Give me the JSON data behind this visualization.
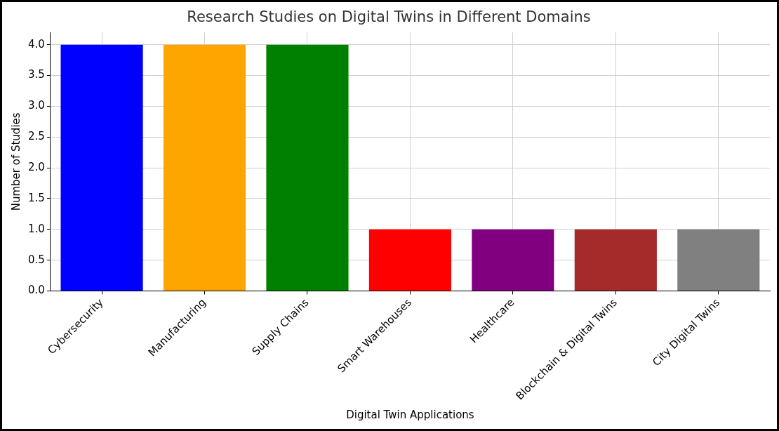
{
  "chart_data": {
    "type": "bar",
    "title": "Research Studies on Digital Twins in Different Domains",
    "xlabel": "Digital Twin Applications",
    "ylabel": "Number of Studies",
    "categories": [
      "Cybersecurity",
      "Manufacturing",
      "Supply Chains",
      "Smart Warehouses",
      "Healthcare",
      "Blockchain & Digital Twins",
      "City Digital Twins"
    ],
    "values": [
      4,
      4,
      4,
      1,
      1,
      1,
      1
    ],
    "colors": [
      "#0000ff",
      "#ffa500",
      "#008000",
      "#ff0000",
      "#800080",
      "#a52a2a",
      "#808080"
    ],
    "ylim": [
      0,
      4.2
    ],
    "yticks": [
      {
        "value": 0,
        "label": "0.0"
      },
      {
        "value": 0.5,
        "label": "0.5"
      },
      {
        "value": 1,
        "label": "1.0"
      },
      {
        "value": 1.5,
        "label": "1.5"
      },
      {
        "value": 2,
        "label": "2.0"
      },
      {
        "value": 2.5,
        "label": "2.5"
      },
      {
        "value": 3,
        "label": "3.0"
      },
      {
        "value": 3.5,
        "label": "3.5"
      },
      {
        "value": 4,
        "label": "4.0"
      }
    ],
    "grid": true
  }
}
